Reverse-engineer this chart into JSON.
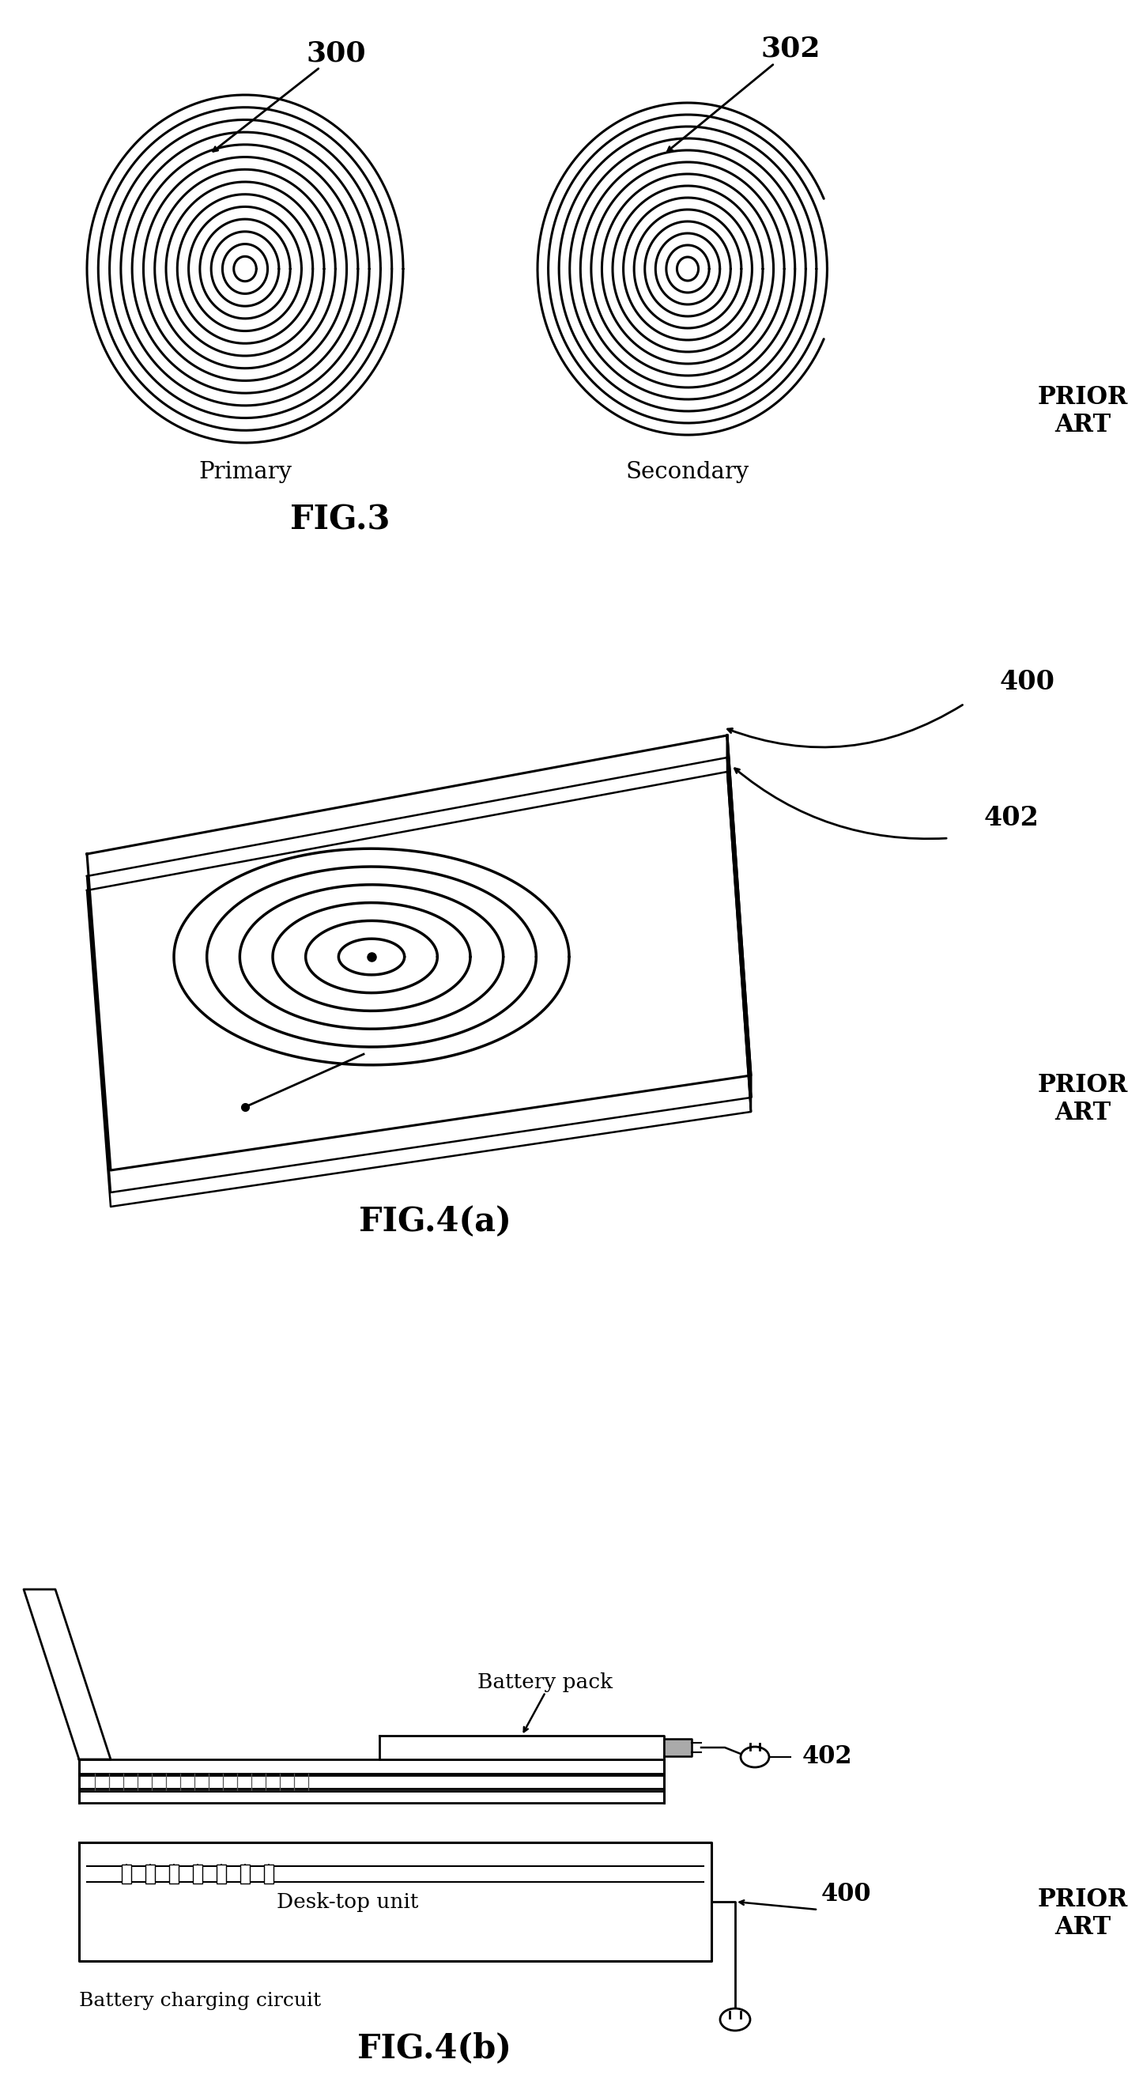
{
  "fig_width": 14.46,
  "fig_height": 26.33,
  "bg_color": "#ffffff",
  "line_color": "#000000",
  "fig3_title": "FIG.3",
  "fig4a_title": "FIG.4(a)",
  "fig4b_title": "FIG.4(b)",
  "prior_art": "PRIOR\nART",
  "label_300": "300",
  "label_302": "302",
  "label_400": "400",
  "label_402": "402",
  "label_primary": "Primary",
  "label_secondary": "Secondary",
  "label_battery_pack": "Battery pack",
  "label_desktop": "Desk-top unit",
  "label_bcc": "Battery charging circuit",
  "n_turns_fig3": 14,
  "n_turns_fig4a": 6
}
